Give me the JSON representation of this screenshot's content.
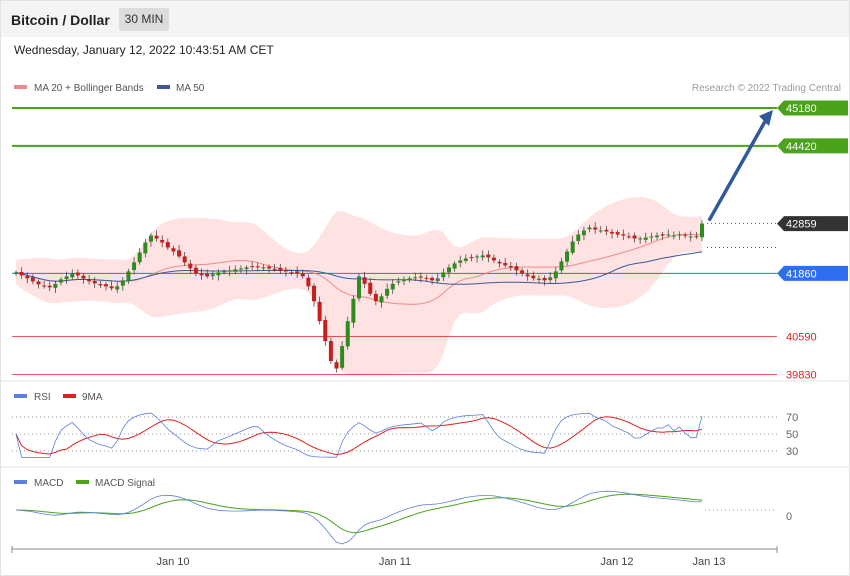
{
  "header": {
    "title": "Bitcoin / Dollar",
    "timeframe": "30 MIN"
  },
  "datetime": "Wednesday, January 12, 2022 10:43:51 AM CET",
  "credit": "Research © 2022 Trading Central",
  "colors": {
    "green": "#4aa31a",
    "red": "#e02020",
    "blue": "#2d6ff0",
    "dark": "#333333",
    "band": "#ffd6d6",
    "ma50": "#3a5a9b",
    "arrow": "#2e5a9b"
  },
  "legend": {
    "main": [
      "MA 20 + Bollinger Bands",
      "MA 50"
    ],
    "rsi": [
      "RSI",
      "9MA"
    ],
    "macd": [
      "MACD",
      "MACD Signal"
    ]
  },
  "chart_data": [
    {
      "type": "candlestick",
      "price_range": [
        39700,
        45400
      ],
      "levels": [
        {
          "label": "45180",
          "value": 45180,
          "kind": "resistance"
        },
        {
          "label": "44420",
          "value": 44420,
          "kind": "resistance"
        },
        {
          "label": "42859",
          "value": 42859,
          "kind": "last"
        },
        {
          "label": "41860",
          "value": 41860,
          "kind": "pivot"
        },
        {
          "label": "40590",
          "value": 40590,
          "kind": "support"
        },
        {
          "label": "39830",
          "value": 39830,
          "kind": "support"
        }
      ],
      "arrow": {
        "from": 42880,
        "to": 45180
      },
      "x_labels": [
        "Jan 10",
        "Jan 11",
        "Jan 12",
        "Jan 13"
      ],
      "close": [
        41880,
        41820,
        41760,
        41700,
        41640,
        41600,
        41580,
        41650,
        41740,
        41800,
        41860,
        41820,
        41760,
        41700,
        41660,
        41620,
        41600,
        41560,
        41600,
        41720,
        41900,
        42080,
        42280,
        42480,
        42620,
        42560,
        42480,
        42380,
        42300,
        42200,
        42080,
        41960,
        41860,
        41820,
        41800,
        41840,
        41880,
        41900,
        41920,
        41940,
        41960,
        41980,
        42000,
        42000,
        41980,
        41960,
        41940,
        41920,
        41900,
        41880,
        41860,
        41800,
        41600,
        41300,
        40900,
        40500,
        40100,
        39950,
        40400,
        40900,
        41350,
        41800,
        41650,
        41450,
        41300,
        41400,
        41550,
        41650,
        41700,
        41740,
        41760,
        41780,
        41800,
        41760,
        41720,
        41760,
        41880,
        41980,
        42060,
        42120,
        42160,
        42180,
        42200,
        42220,
        42180,
        42120,
        42060,
        42020,
        41980,
        41920,
        41860,
        41800,
        41760,
        41740,
        41720,
        41780,
        41900,
        42100,
        42300,
        42500,
        42640,
        42720,
        42780,
        42740,
        42720,
        42700,
        42660,
        42640,
        42620,
        42600,
        42560,
        42560,
        42580,
        42600,
        42620,
        42620,
        42640,
        42620,
        42640,
        42620,
        42600,
        42600,
        42860
      ],
      "rsi_levels": [
        70,
        50,
        30
      ],
      "macd_zero": 0
    }
  ]
}
